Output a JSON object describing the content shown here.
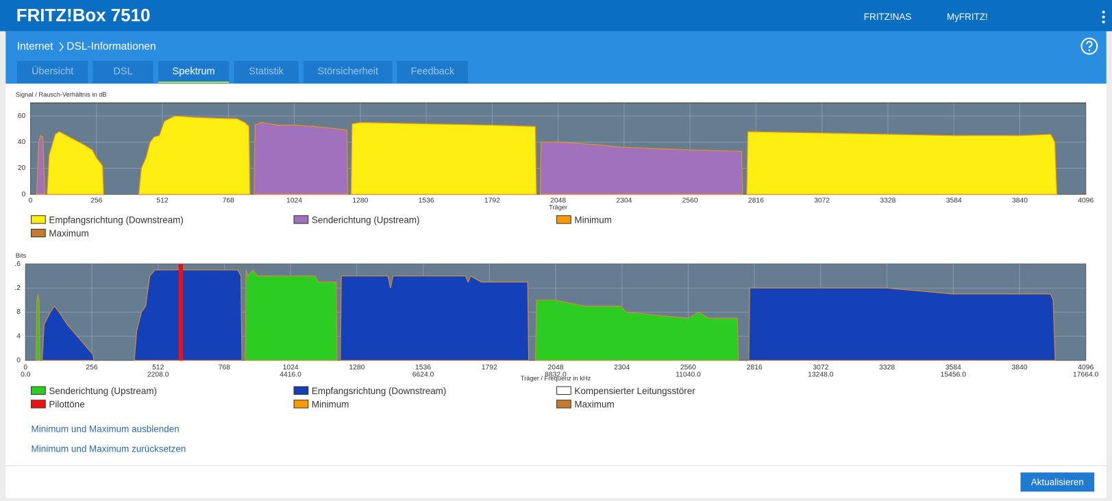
{
  "header": {
    "title": "FRITZ!Box 7510",
    "links": [
      "FRITZ!NAS",
      "MyFRITZ!"
    ]
  },
  "breadcrumb": [
    "Internet",
    "DSL-Informationen"
  ],
  "tabs": [
    "Übersicht",
    "DSL",
    "Spektrum",
    "Statistik",
    "Störsicherheit",
    "Feedback"
  ],
  "active_tab": 2,
  "chart_data": [
    {
      "type": "area",
      "ylabel": "Signal / Rausch-Verhältnis in dB",
      "xlabel": "Träger",
      "xlim": [
        0,
        4096
      ],
      "xticks": [
        0,
        256,
        512,
        768,
        1024,
        1280,
        1536,
        1792,
        2048,
        2304,
        2560,
        2816,
        3072,
        3328,
        3584,
        3840,
        4096
      ],
      "ylim": [
        0,
        70
      ],
      "yticks": [
        0,
        20,
        40,
        60
      ],
      "grid": true,
      "outline_color": "#e8901c",
      "series": [
        {
          "name": "Empfangsrichtung (Downstream)",
          "color": "#ffee11",
          "x": [
            64,
            72,
            96,
            112,
            160,
            208,
            240,
            256,
            280,
            284,
            null,
            420,
            430,
            448,
            464,
            480,
            500,
            512,
            520,
            560,
            640,
            768,
            800,
            832,
            848,
            852,
            null,
            1244,
            1248,
            1280,
            1536,
            1792,
            1960,
            1964,
            null,
            2780,
            2784,
            3072,
            3328,
            3584,
            3840,
            3960,
            3976,
            3984
          ],
          "values": [
            0,
            30,
            46,
            48,
            43,
            38,
            34,
            28,
            22,
            0,
            null,
            0,
            20,
            28,
            40,
            44,
            45,
            52,
            56,
            60,
            59,
            58,
            58,
            55,
            52,
            0,
            null,
            0,
            54,
            55,
            54,
            53,
            52,
            0,
            null,
            0,
            48,
            47,
            46,
            45,
            45,
            46,
            40,
            0
          ]
        },
        {
          "name": "Senderichtung (Upstream)",
          "color": "#a072bd",
          "x": [
            24,
            32,
            40,
            48,
            56,
            null,
            868,
            872,
            896,
            960,
            1024,
            1100,
            1200,
            1228,
            1232,
            null,
            1978,
            1982,
            2048,
            2200,
            2304,
            2560,
            2760,
            2764
          ],
          "values": [
            0,
            40,
            45,
            44,
            0,
            null,
            0,
            53,
            55,
            53,
            53,
            52,
            50,
            49,
            0,
            null,
            0,
            40,
            40,
            38,
            36,
            34,
            33,
            0
          ]
        },
        {
          "name": "Minimum",
          "color": "#ff9900"
        },
        {
          "name": "Maximum",
          "color": "#c87a2c"
        }
      ]
    },
    {
      "type": "area",
      "ylabel": "Bits",
      "xlabel": "Träger / Frequenz in kHz",
      "xlim": [
        0,
        4096
      ],
      "xticks": [
        0,
        256,
        512,
        768,
        1024,
        1280,
        1536,
        1792,
        2048,
        2304,
        2560,
        2816,
        3072,
        3328,
        3584,
        3840,
        4096
      ],
      "x2lim": [
        0,
        17664
      ],
      "x2ticks": [
        {
          "value": 0,
          "label": "0.0"
        },
        {
          "value": 2208,
          "label": "2208.0"
        },
        {
          "value": 4416,
          "label": "4416.0"
        },
        {
          "value": 6624,
          "label": "6624.0"
        },
        {
          "value": 8832,
          "label": "8832.0"
        },
        {
          "value": 11040,
          "label": "11040.0"
        },
        {
          "value": 13248,
          "label": "13248.0"
        },
        {
          "value": 15456,
          "label": "15456.0"
        },
        {
          "value": 17664,
          "label": "17664.0"
        }
      ],
      "ylim": [
        0,
        16
      ],
      "yticks": [
        0,
        4,
        8,
        {
          "value": 12,
          "label": ".2"
        },
        {
          "value": 16,
          "label": ".6"
        }
      ],
      "grid": true,
      "outline_color": "#d08a3a",
      "series": [
        {
          "name": "Senderichtung (Upstream)",
          "color": "#2ccc22",
          "x": [
            40,
            44,
            48,
            52,
            56,
            null,
            848,
            852,
            860,
            880,
            896,
            1024,
            1120,
            1130,
            1200,
            1204,
            null,
            1970,
            1974,
            2048,
            2160,
            2300,
            2320,
            2560,
            2600,
            2640,
            2750,
            2754
          ],
          "values": [
            0,
            10,
            11,
            10,
            0,
            null,
            0,
            15,
            14,
            15,
            14,
            14,
            14,
            13,
            13,
            0,
            null,
            0,
            10,
            10,
            9,
            9,
            8,
            7,
            8,
            7,
            7,
            0
          ]
        },
        {
          "name": "Empfangsrichtung (Downstream)",
          "color": "#1440b8",
          "x": [
            64,
            72,
            96,
            112,
            130,
            160,
            200,
            240,
            260,
            264,
            null,
            420,
            430,
            448,
            464,
            480,
            500,
            768,
            820,
            832,
            836,
            null,
            1216,
            1220,
            1400,
            1410,
            1420,
            1700,
            1710,
            1720,
            1760,
            1940,
            1944,
            null,
            2794,
            2798,
            3072,
            3328,
            3584,
            3840,
            3960,
            3970,
            3978
          ],
          "values": [
            0,
            6,
            8,
            9,
            8,
            6,
            4,
            2,
            1,
            0,
            null,
            0,
            5,
            8,
            9,
            14,
            15,
            15,
            15,
            14,
            0,
            null,
            0,
            14,
            14,
            12,
            14,
            14,
            13,
            14,
            13,
            13,
            0,
            null,
            0,
            12,
            12,
            12,
            11,
            11,
            11,
            10,
            0
          ]
        },
        {
          "name": "Kompensierter Leitungsstörer",
          "color": "#ffffff"
        },
        {
          "name": "Pilottöne",
          "color": "#ee1111",
          "x": [
            600
          ],
          "values": [
            16
          ]
        },
        {
          "name": "Minimum",
          "color": "#ff9900"
        },
        {
          "name": "Maximum",
          "color": "#c87a2c"
        }
      ]
    }
  ],
  "links": [
    "Minimum und Maximum ausblenden",
    "Minimum und Maximum zurücksetzen"
  ],
  "button": "Aktualisieren"
}
